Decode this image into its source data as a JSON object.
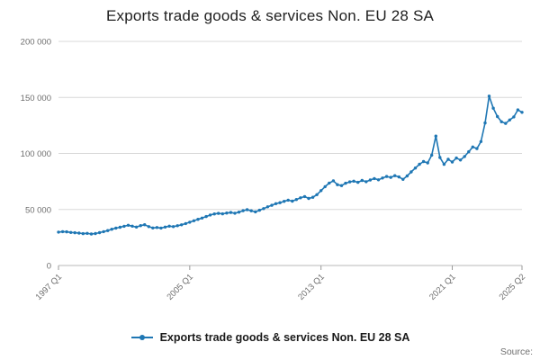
{
  "title": "Exports trade goods & services Non. EU 28 SA",
  "legend": {
    "label": "Exports trade goods & services Non. EU 28 SA"
  },
  "source_label": "Source:",
  "colors": {
    "line": "#1f77b4",
    "grid": "#d9d9d9",
    "axis": "#b8b8b8",
    "tick": "#999999",
    "tick_label": "#6e6e6e",
    "title_text": "#202020"
  },
  "chart_data": {
    "type": "line",
    "title": "Exports trade goods & services Non. EU 28 SA",
    "xlabel": "",
    "ylabel": "",
    "ylim": [
      0,
      200000
    ],
    "grid": "horizontal",
    "legend_position": "bottom",
    "markers": true,
    "x_start": "1997 Q1",
    "x_end": "2025 Q2",
    "x_frequency": "quarterly",
    "y_ticks": [
      {
        "value": 0,
        "label": "0"
      },
      {
        "value": 50000,
        "label": "50 000"
      },
      {
        "value": 100000,
        "label": "100 000"
      },
      {
        "value": 150000,
        "label": "150 000"
      },
      {
        "value": 200000,
        "label": "200 000"
      }
    ],
    "x_ticks": [
      {
        "index": 0,
        "label": "1997 Q1"
      },
      {
        "index": 32,
        "label": "2005 Q1"
      },
      {
        "index": 64,
        "label": "2013 Q1"
      },
      {
        "index": 96,
        "label": "2021 Q1"
      },
      {
        "index": 113,
        "label": "2025 Q2"
      }
    ],
    "series": [
      {
        "name": "Exports trade goods & services Non. EU 28 SA",
        "values": [
          29800,
          30200,
          30000,
          29500,
          29200,
          28900,
          28400,
          28700,
          28100,
          28500,
          29300,
          30200,
          31200,
          32400,
          33300,
          34100,
          35000,
          35900,
          35100,
          34300,
          35600,
          36400,
          34700,
          33500,
          33900,
          33400,
          34300,
          35100,
          34700,
          35500,
          36300,
          37400,
          38600,
          39900,
          41200,
          42300,
          43700,
          45100,
          46000,
          46500,
          46100,
          46800,
          47300,
          46700,
          47600,
          48900,
          49800,
          48800,
          47900,
          49300,
          50800,
          52400,
          53700,
          55200,
          56100,
          57300,
          58300,
          57400,
          58900,
          60400,
          61500,
          59800,
          60900,
          63200,
          66800,
          70400,
          73600,
          75600,
          72100,
          71300,
          73400,
          74600,
          75300,
          74200,
          75900,
          74800,
          76300,
          77600,
          76500,
          78100,
          79400,
          78600,
          80200,
          79000,
          76900,
          79900,
          83500,
          87000,
          90400,
          92800,
          91600,
          98500,
          115500,
          96400,
          90300,
          94800,
          92400,
          95900,
          94100,
          97300,
          101500,
          105800,
          104300,
          110600,
          127200,
          151200,
          140400,
          132900,
          128300,
          126800,
          129900,
          132600,
          138900,
          136700
        ]
      }
    ]
  }
}
